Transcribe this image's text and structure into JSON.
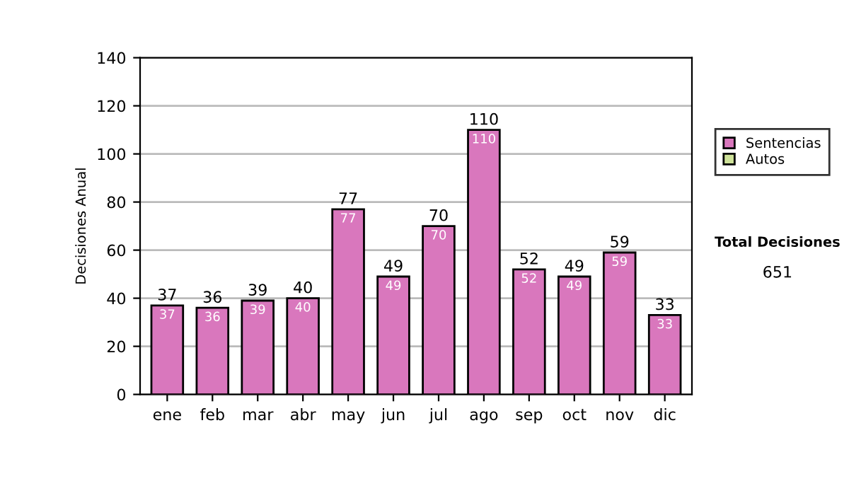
{
  "chart_data": {
    "type": "bar",
    "ylabel": "Decisiones Anual",
    "categories": [
      "ene",
      "feb",
      "mar",
      "abr",
      "may",
      "jun",
      "jul",
      "ago",
      "sep",
      "oct",
      "nov",
      "dic"
    ],
    "stacked": true,
    "series": [
      {
        "name": "Sentencias",
        "color": "#d977bd",
        "values": [
          37,
          36,
          39,
          40,
          77,
          49,
          70,
          110,
          52,
          49,
          59,
          33
        ],
        "value_labels": [
          "37",
          "36",
          "39",
          "40",
          "77",
          "49",
          "70",
          "110",
          "52",
          "49",
          "59",
          "33"
        ]
      },
      {
        "name": "Autos",
        "color": "#cfe39a",
        "values": [
          null,
          null,
          null,
          null,
          null,
          null,
          null,
          null,
          null,
          null,
          null,
          null
        ]
      }
    ],
    "totals": [
      "37",
      "36",
      "39",
      "40",
      "77",
      "49",
      "70",
      "110",
      "52",
      "49",
      "59",
      "33"
    ],
    "ylim": [
      0,
      140
    ],
    "yticks": [
      0,
      20,
      40,
      60,
      80,
      100,
      120,
      140
    ],
    "grid": "y",
    "legend": "right",
    "annotations": [
      "Total Decisiones",
      "651"
    ]
  }
}
